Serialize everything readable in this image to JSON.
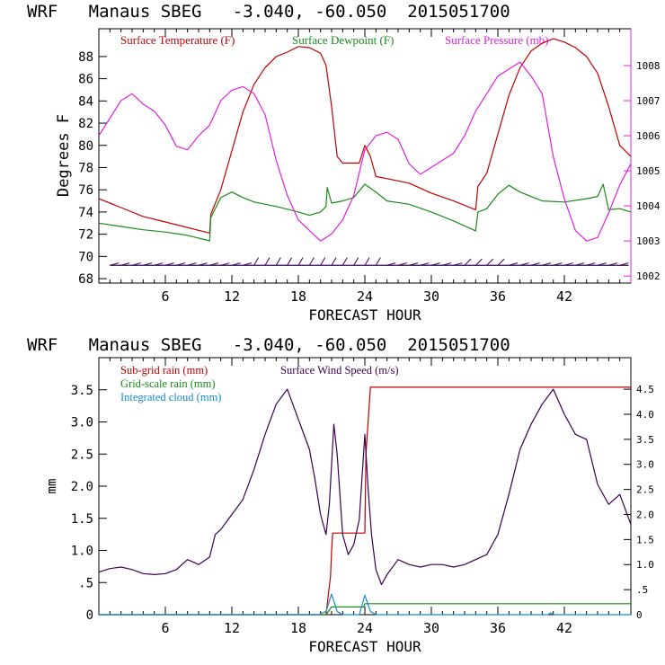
{
  "colors": {
    "temperature": "#c00000",
    "dewpoint": "#1a8a1a",
    "pressure": "#e020e0",
    "subgrid_rain": "#c00000",
    "gridscale_rain": "#1a8a1a",
    "cloud": "#1a8ad0",
    "wind": "#3a0050",
    "axis": "#000000"
  },
  "chart_data": [
    {
      "type": "line",
      "title": "WRF   Manaus SBEG   -3.040, -60.050  2015051700",
      "xlabel": "FORECAST HOUR",
      "ylabel": "Degrees F",
      "xlim": [
        0,
        48
      ],
      "ylim": [
        67.6,
        90.5
      ],
      "y2lim": [
        1001.8,
        1009.05
      ],
      "x_ticks": [
        6,
        12,
        18,
        24,
        30,
        36,
        42
      ],
      "y_ticks": [
        68,
        70,
        72,
        74,
        76,
        78,
        80,
        82,
        84,
        86,
        88
      ],
      "y2_ticks": [
        1002,
        1003,
        1004,
        1005,
        1006,
        1007,
        1008
      ],
      "legend": [
        "Surface Temperature (F)",
        "Surface Dewpoint (F)",
        "Surface Pressure (mb)"
      ],
      "legend_position": "top",
      "series": [
        {
          "name": "Surface Temperature (F)",
          "axis": "left",
          "x": [
            0,
            2,
            4,
            6,
            8,
            10,
            10.1,
            11,
            12,
            13,
            14,
            15,
            16,
            17,
            18,
            19,
            20,
            20.5,
            21,
            21.5,
            22,
            23,
            23.5,
            24,
            24.5,
            25,
            26,
            28,
            30,
            32,
            34,
            34.2,
            35,
            36,
            37,
            38,
            39,
            40,
            41,
            42,
            43,
            44,
            45,
            46,
            47,
            48
          ],
          "y": [
            75.2,
            74.4,
            73.6,
            73.1,
            72.6,
            72.1,
            73.8,
            76.0,
            79.5,
            83.0,
            85.5,
            87.0,
            88.0,
            88.4,
            88.9,
            88.8,
            88.3,
            87.2,
            83.5,
            79.0,
            78.4,
            78.4,
            78.4,
            80.0,
            79.0,
            77.2,
            77.0,
            76.6,
            75.7,
            75.0,
            74.2,
            76.3,
            77.5,
            81.0,
            84.5,
            87.0,
            88.5,
            89.2,
            89.6,
            89.3,
            88.8,
            88.0,
            86.5,
            83.5,
            80.0,
            79.0
          ]
        },
        {
          "name": "Surface Dewpoint (F)",
          "axis": "left",
          "x": [
            0,
            2,
            4,
            6,
            8,
            10,
            10.1,
            11,
            12,
            13,
            14,
            16,
            18,
            19,
            20,
            20.5,
            20.6,
            21,
            22,
            23,
            24,
            25,
            26,
            28,
            30,
            32,
            34,
            34.2,
            35,
            36,
            37,
            38,
            40,
            42,
            44,
            45,
            45.5,
            46,
            47,
            48
          ],
          "y": [
            73.0,
            72.7,
            72.4,
            72.2,
            71.9,
            71.4,
            73.5,
            75.3,
            75.8,
            75.3,
            74.9,
            74.5,
            74.0,
            73.7,
            74.0,
            74.5,
            76.2,
            74.8,
            75.0,
            75.3,
            76.5,
            75.8,
            75.0,
            74.7,
            74.0,
            73.2,
            72.3,
            74.0,
            74.3,
            75.6,
            76.4,
            75.8,
            75.0,
            74.9,
            75.2,
            75.4,
            76.5,
            74.2,
            74.3,
            74.0
          ]
        },
        {
          "name": "Surface Pressure (mb)",
          "axis": "right",
          "x": [
            0,
            1,
            2,
            3,
            4,
            5,
            6,
            7,
            8,
            9,
            10,
            11,
            12,
            13,
            14,
            15,
            16,
            17,
            18,
            19,
            20,
            21,
            22,
            23,
            24,
            25,
            26,
            27,
            28,
            29,
            30,
            31,
            32,
            33,
            34,
            35,
            36,
            37,
            38,
            39,
            40,
            41,
            42,
            43,
            44,
            45,
            46,
            47,
            48
          ],
          "y": [
            1006.0,
            1006.5,
            1007.0,
            1007.2,
            1006.9,
            1006.7,
            1006.3,
            1005.7,
            1005.6,
            1006.0,
            1006.3,
            1007.0,
            1007.3,
            1007.4,
            1007.2,
            1006.6,
            1005.3,
            1004.3,
            1003.6,
            1003.3,
            1003.0,
            1003.2,
            1003.6,
            1004.3,
            1005.6,
            1006.0,
            1006.1,
            1005.9,
            1005.2,
            1004.9,
            1005.1,
            1005.3,
            1005.5,
            1006.0,
            1006.7,
            1007.2,
            1007.7,
            1007.9,
            1008.1,
            1007.7,
            1007.2,
            1005.4,
            1004.2,
            1003.3,
            1003.0,
            1003.1,
            1003.8,
            1004.6,
            1005.2
          ]
        }
      ],
      "wind_barbs": {
        "color": "#3a0050",
        "y": 69.2
      }
    },
    {
      "type": "line",
      "title": "WRF   Manaus SBEG   -3.040, -60.050  2015051700",
      "xlabel": "FORECAST HOUR",
      "ylabel": "mm",
      "xlim": [
        0,
        48
      ],
      "ylim": [
        0,
        4.0
      ],
      "y2lim": [
        0,
        5.13
      ],
      "x_ticks": [
        6,
        12,
        18,
        24,
        30,
        36,
        42
      ],
      "y_ticks": [
        0,
        0.5,
        1.0,
        1.5,
        2.0,
        2.5,
        3.0,
        3.5
      ],
      "y_tick_labels": [
        "0",
        ".5",
        "1.0",
        "1.5",
        "2.0",
        "2.5",
        "3.0",
        "3.5"
      ],
      "y2_ticks": [
        0,
        0.5,
        1.0,
        1.5,
        2.0,
        2.5,
        3.0,
        3.5,
        4.0,
        4.5
      ],
      "y2_tick_labels": [
        "0",
        ".5",
        "1.0",
        "1.5",
        "2.0",
        "2.5",
        "3.0",
        "3.5",
        "4.0",
        "4.5"
      ],
      "legend": [
        "Sub-grid rain (mm)",
        "Grid-scale rain (mm)",
        "Integrated cloud (mm)",
        "Surface Wind Speed (m/s)"
      ],
      "legend_position": "top-left",
      "series": [
        {
          "name": "Sub-grid rain (mm)",
          "axis": "left",
          "x": [
            0,
            20.5,
            20.9,
            21.0,
            21.1,
            24.0,
            24.1,
            24.5,
            48
          ],
          "y": [
            0,
            0,
            0.6,
            1.0,
            1.27,
            1.27,
            2.5,
            3.54,
            3.54
          ]
        },
        {
          "name": "Grid-scale rain (mm)",
          "axis": "left",
          "x": [
            0,
            20.5,
            21.0,
            23.9,
            24.0,
            48
          ],
          "y": [
            0,
            0,
            0.12,
            0.12,
            0.17,
            0.17
          ]
        },
        {
          "name": "Integrated cloud (mm)",
          "axis": "left",
          "x": [
            0,
            19.8,
            20.5,
            21.0,
            21.5,
            22,
            23.5,
            24.0,
            24.5,
            25,
            40.5,
            40.8,
            41.1,
            48
          ],
          "y": [
            0,
            0,
            0.05,
            0.32,
            0.05,
            0,
            0,
            0.3,
            0.05,
            0,
            0,
            0.03,
            0,
            0
          ]
        },
        {
          "name": "Surface Wind Speed (m/s)",
          "axis": "right",
          "x": [
            0,
            1,
            2,
            3,
            4,
            5,
            6,
            7,
            8,
            9,
            10,
            10.5,
            11,
            12,
            13,
            14,
            15,
            16,
            17,
            18,
            19,
            19.5,
            20,
            20.5,
            20.8,
            21.2,
            21.5,
            22,
            22.5,
            23,
            23.5,
            24,
            24.3,
            24.6,
            25,
            25.5,
            26,
            27,
            28,
            29,
            30,
            31,
            32,
            33,
            34,
            35,
            36,
            37,
            38,
            39,
            40,
            41,
            42,
            43,
            44,
            45,
            46,
            47,
            48
          ],
          "y": [
            0.85,
            0.92,
            0.95,
            0.9,
            0.82,
            0.8,
            0.82,
            0.9,
            1.1,
            1.0,
            1.15,
            1.6,
            1.7,
            2.0,
            2.3,
            2.9,
            3.6,
            4.2,
            4.5,
            3.9,
            3.3,
            2.7,
            2.0,
            1.6,
            2.2,
            3.8,
            3.2,
            1.6,
            1.2,
            1.4,
            1.9,
            3.6,
            2.5,
            1.6,
            0.9,
            0.6,
            0.8,
            1.1,
            1.0,
            0.95,
            1.0,
            1.0,
            0.95,
            1.0,
            1.1,
            1.2,
            1.6,
            2.4,
            3.3,
            3.8,
            4.2,
            4.5,
            4.0,
            3.6,
            3.5,
            2.6,
            2.2,
            2.4,
            1.8
          ]
        }
      ]
    }
  ]
}
